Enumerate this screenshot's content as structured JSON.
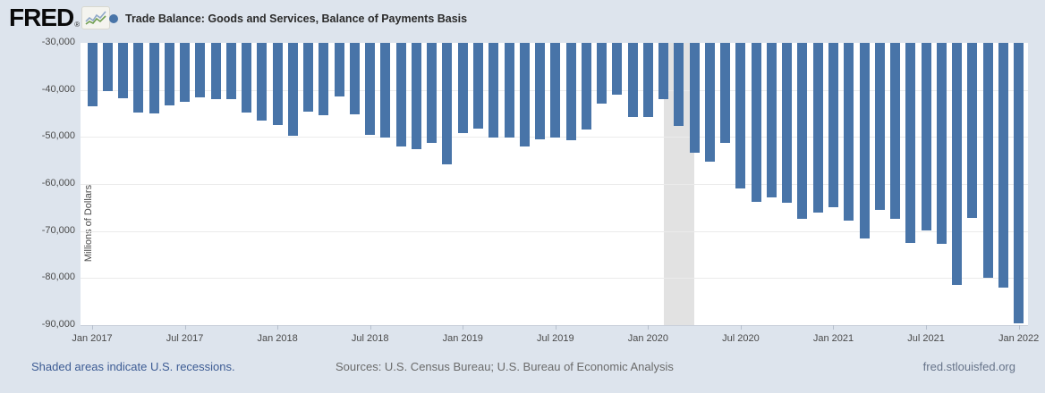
{
  "header": {
    "logo_text": "FRED",
    "registered_mark": "®",
    "title": "Trade Balance: Goods and Services, Balance of Payments Basis"
  },
  "colors": {
    "background": "#dde4ed",
    "bar": "#4874a8",
    "legend_dot": "#4874a8",
    "recession_band": "#e2e2e2",
    "link_blue": "#3d5c94"
  },
  "chart_data": {
    "type": "bar",
    "title": "Trade Balance: Goods and Services, Balance of Payments Basis",
    "xlabel": "",
    "ylabel": "Millions of Dollars",
    "ylim": [
      -90000,
      -30000
    ],
    "grid": true,
    "y_ticks": [
      -30000,
      -40000,
      -50000,
      -60000,
      -70000,
      -80000,
      -90000
    ],
    "y_tick_labels": [
      "-30,000",
      "-40,000",
      "-50,000",
      "-60,000",
      "-70,000",
      "-80,000",
      "-90,000"
    ],
    "x_tick_labels": [
      "Jan 2017",
      "Jul 2017",
      "Jan 2018",
      "Jul 2018",
      "Jan 2019",
      "Jul 2019",
      "Jan 2020",
      "Jul 2020",
      "Jan 2021",
      "Jul 2021",
      "Jan 2022"
    ],
    "x_tick_interval_months": 6,
    "recession_band": {
      "start": "2020-02",
      "end": "2020-04"
    },
    "series": [
      {
        "name": "Trade Balance: Goods and Services, Balance of Payments Basis",
        "x": [
          "2017-01",
          "2017-02",
          "2017-03",
          "2017-04",
          "2017-05",
          "2017-06",
          "2017-07",
          "2017-08",
          "2017-09",
          "2017-10",
          "2017-11",
          "2017-12",
          "2018-01",
          "2018-02",
          "2018-03",
          "2018-04",
          "2018-05",
          "2018-06",
          "2018-07",
          "2018-08",
          "2018-09",
          "2018-10",
          "2018-11",
          "2018-12",
          "2019-01",
          "2019-02",
          "2019-03",
          "2019-04",
          "2019-05",
          "2019-06",
          "2019-07",
          "2019-08",
          "2019-09",
          "2019-10",
          "2019-11",
          "2019-12",
          "2020-01",
          "2020-02",
          "2020-03",
          "2020-04",
          "2020-05",
          "2020-06",
          "2020-07",
          "2020-08",
          "2020-09",
          "2020-10",
          "2020-11",
          "2020-12",
          "2021-01",
          "2021-02",
          "2021-03",
          "2021-04",
          "2021-05",
          "2021-06",
          "2021-07",
          "2021-08",
          "2021-09",
          "2021-10",
          "2021-11",
          "2021-12",
          "2022-01"
        ],
        "values": [
          -43400,
          -40300,
          -41800,
          -44800,
          -45000,
          -43200,
          -42500,
          -41600,
          -41900,
          -42000,
          -44900,
          -46600,
          -47400,
          -49700,
          -44600,
          -45400,
          -41400,
          -45200,
          -49600,
          -50200,
          -52000,
          -52600,
          -51200,
          -55900,
          -49200,
          -48300,
          -50200,
          -50200,
          -52100,
          -50500,
          -50200,
          -50700,
          -48500,
          -43000,
          -41100,
          -45700,
          -45700,
          -41900,
          -47600,
          -53400,
          -55200,
          -51200,
          -60900,
          -63800,
          -62800,
          -63900,
          -67400,
          -66000,
          -65000,
          -67800,
          -71500,
          -65500,
          -67400,
          -72500,
          -69800,
          -72700,
          -81400,
          -67200,
          -80000,
          -82100,
          -89600
        ]
      }
    ]
  },
  "footer": {
    "recession_note": "Shaded areas indicate U.S. recessions.",
    "sources": "Sources: U.S. Census Bureau; U.S. Bureau of Economic Analysis",
    "site": "fred.stlouisfed.org"
  }
}
